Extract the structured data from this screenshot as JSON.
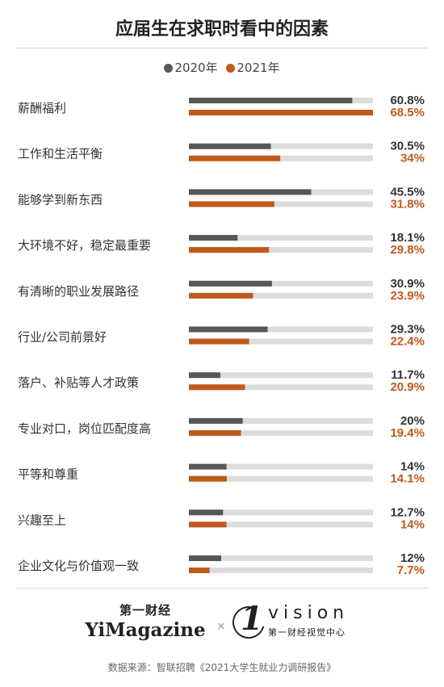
{
  "chart_data": {
    "type": "bar",
    "title": "应届生在求职时看中的因素",
    "categories": [
      "薪酬福利",
      "工作和生活平衡",
      "能够学到新东西",
      "大环境不好，稳定最重要",
      "有清晰的职业发展路径",
      "行业/公司前景好",
      "落户、补贴等人才政策",
      "专业对口，岗位匹配度高",
      "平等和尊重",
      "兴趣至上",
      "企业文化与价值观一致"
    ],
    "series": [
      {
        "name": "2020年",
        "color": "#575757",
        "values": [
          60.8,
          30.5,
          45.5,
          18.1,
          30.9,
          29.3,
          11.7,
          20,
          14,
          12.7,
          12
        ],
        "labels": [
          "60.8%",
          "30.5%",
          "45.5%",
          "18.1%",
          "30.9%",
          "29.3%",
          "11.7%",
          "20%",
          "14%",
          "12.7%",
          "12%"
        ]
      },
      {
        "name": "2021年",
        "color": "#bf5a1b",
        "values": [
          68.5,
          34,
          31.8,
          29.8,
          23.9,
          22.4,
          20.9,
          19.4,
          14.1,
          14,
          7.7
        ],
        "labels": [
          "68.5%",
          "34%",
          "31.8%",
          "29.8%",
          "23.9%",
          "22.4%",
          "20.9%",
          "19.4%",
          "14.1%",
          "14%",
          "7.7%"
        ]
      }
    ],
    "xlim": [
      0,
      68.5
    ],
    "track_color": "#dcdcdc",
    "legend_position": "top-center",
    "grid": false
  },
  "footer": {
    "logo_left_cn": "第一财经",
    "logo_left_en": "YiMagazine",
    "separator": "×",
    "logo_right_mark": "1",
    "logo_right_en": "vision",
    "logo_right_cn": "第一财经视觉中心",
    "source": "数据来源：智联招聘《2021大学生就业力调研报告》"
  }
}
